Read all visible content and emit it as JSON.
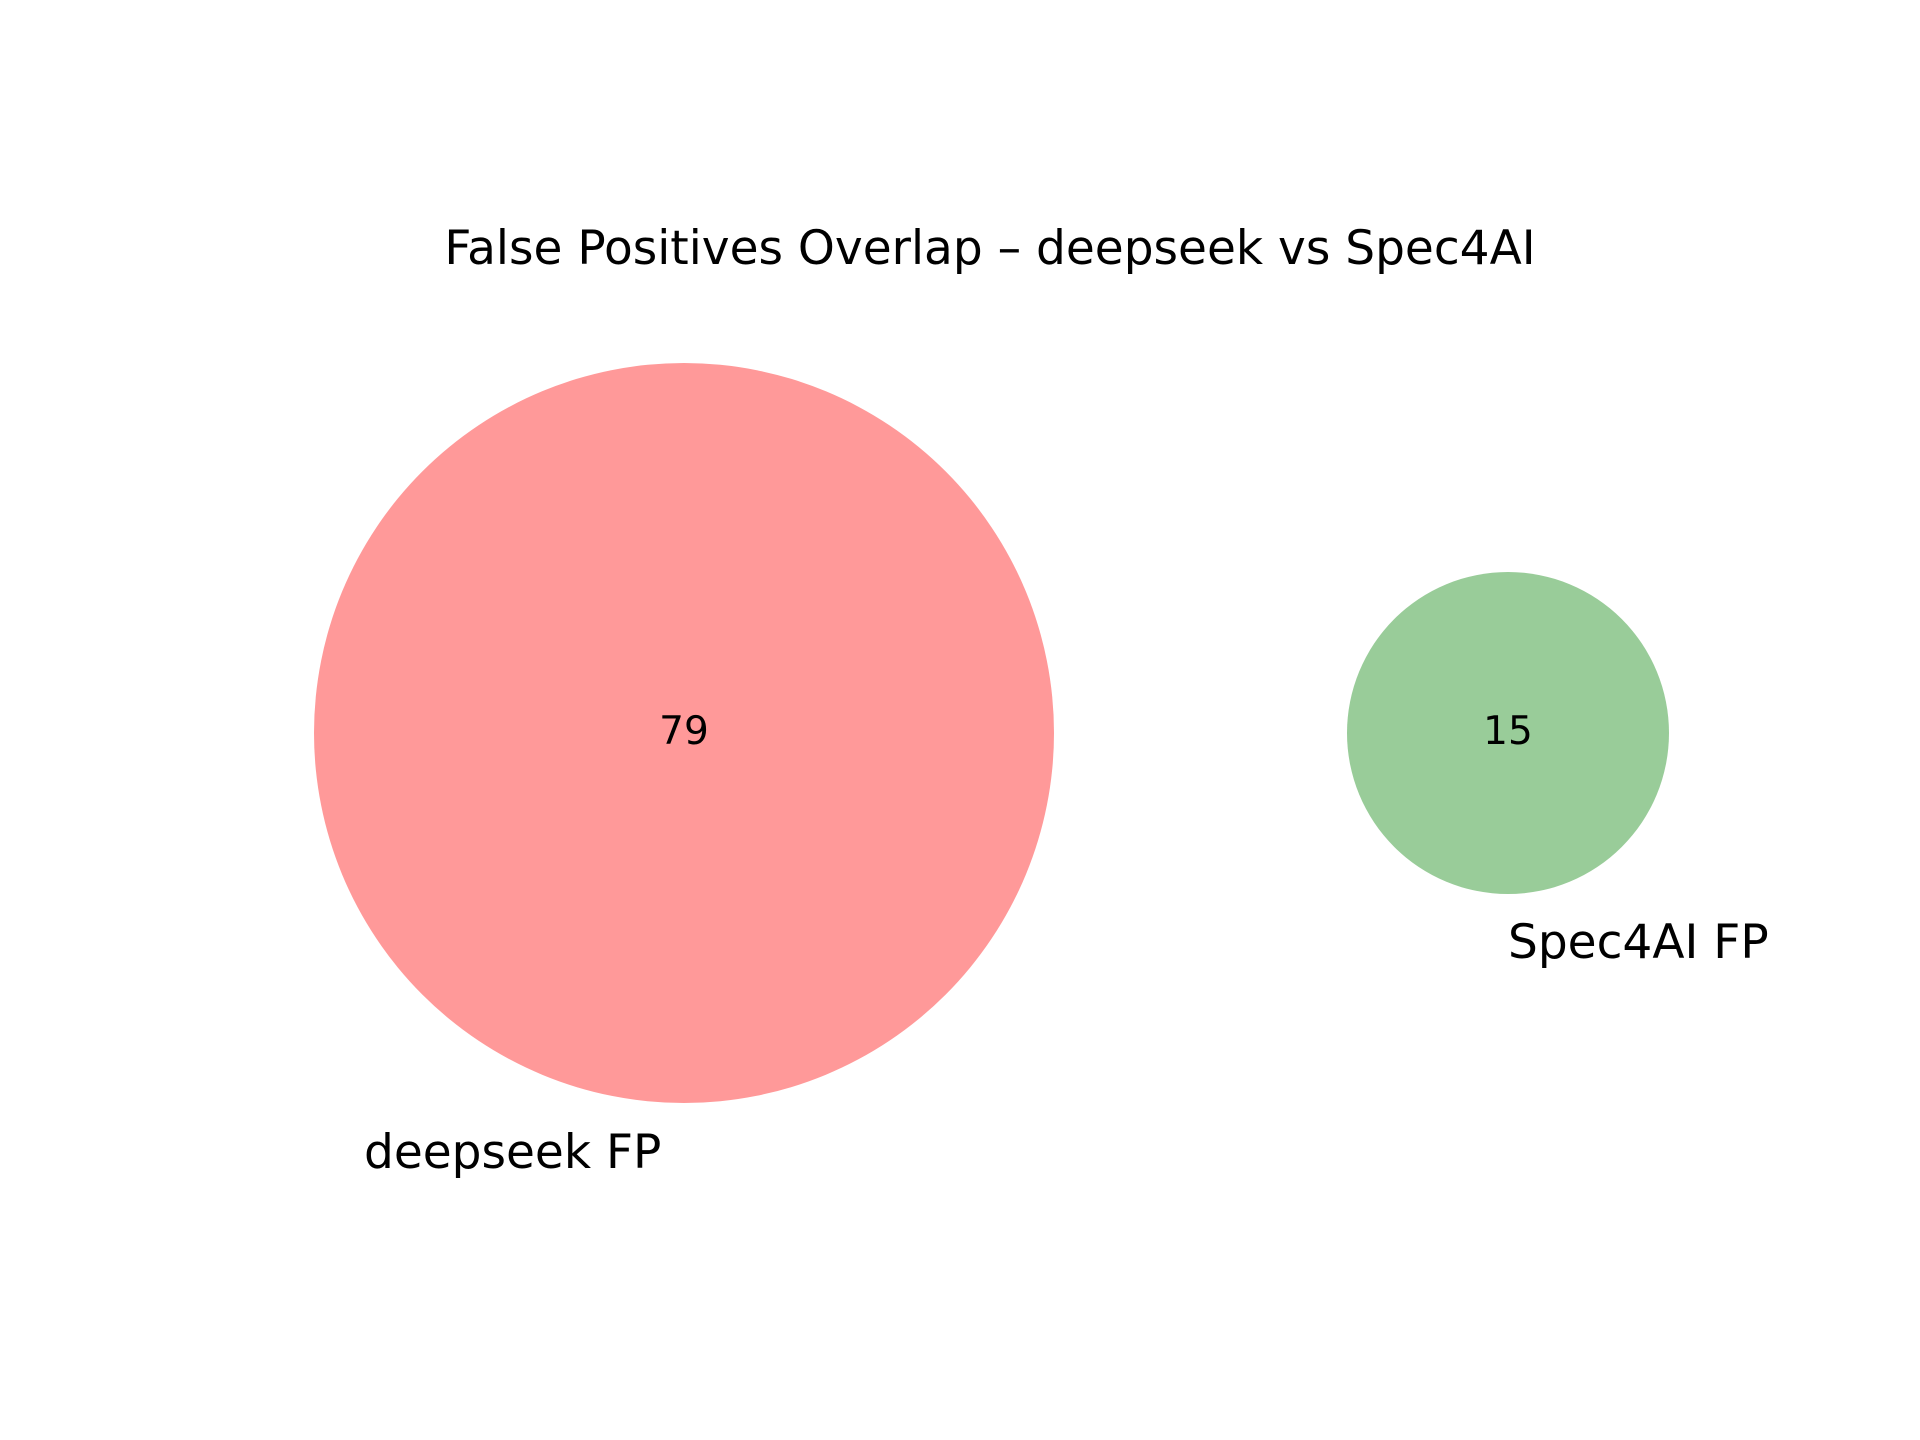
{
  "chart_data": {
    "type": "venn",
    "title": "False Positives Overlap – deepseek vs Spec4AI",
    "sets": [
      {
        "name": "deepseek FP",
        "only": 79,
        "color": "#ff9999"
      },
      {
        "name": "Spec4AI FP",
        "only": 15,
        "color": "#99cc99"
      }
    ],
    "intersection": 0
  }
}
